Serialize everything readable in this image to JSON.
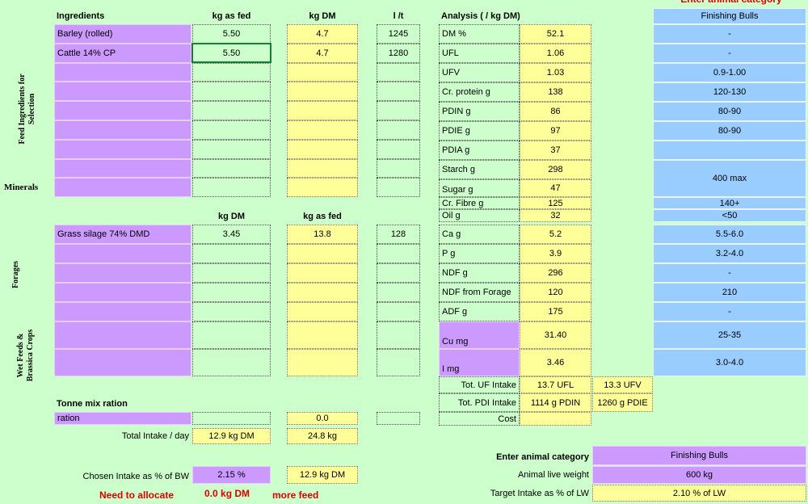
{
  "top_note": "Enter animal category",
  "side_labels": {
    "feed": "Feed Ingredients for Selection",
    "minerals": "Minerals",
    "forages": "Forages",
    "wet": "Wet Feeds & Brassica Crops"
  },
  "ingredients": {
    "headers": [
      "Ingredients",
      "kg as fed",
      "kg DM",
      "l /t"
    ],
    "rows": [
      [
        "Barley (rolled)",
        "5.50",
        "4.7",
        "1245"
      ],
      [
        "Cattle 14% CP",
        "5.50",
        "4.7",
        "1280"
      ]
    ]
  },
  "forages": {
    "headers": [
      "kg DM",
      "kg as fed"
    ],
    "rows": [
      [
        "Grass silage 74% DMD",
        "3.45",
        "13.8",
        "128"
      ]
    ]
  },
  "analysis": {
    "title": "Analysis ( / kg DM)",
    "rows": [
      [
        "DM %",
        "52.1"
      ],
      [
        "UFL",
        "1.06"
      ],
      [
        "UFV",
        "1.03"
      ],
      [
        "Cr. protein g",
        "138"
      ],
      [
        "PDIN g",
        "86"
      ],
      [
        "PDIE g",
        "97"
      ],
      [
        "PDIA g",
        "37"
      ],
      [
        "Starch g",
        "298"
      ],
      [
        "Sugar g",
        "47"
      ],
      [
        "Cr. Fibre g",
        "125"
      ],
      [
        "Oil g",
        "32"
      ],
      [
        "Ca g",
        "5.2"
      ],
      [
        "P g",
        "3.9"
      ],
      [
        "NDF g",
        "296"
      ],
      [
        "NDF from Forage",
        "120"
      ],
      [
        "ADF g",
        "175"
      ],
      [
        "Cu mg",
        "31.40"
      ],
      [
        "I mg",
        "3.46"
      ]
    ]
  },
  "requirements": {
    "header": "Finishing Bulls",
    "values": [
      "-",
      "-",
      "0.9-1.00",
      "120-130",
      "80-90",
      "80-90",
      "400 max",
      "140+",
      "<50",
      "5.5-6.0",
      "3.2-4.0",
      "-",
      "210",
      "-",
      "25-35",
      "3.0-4.0"
    ]
  },
  "totals": [
    {
      "label": "Tot. UF Intake",
      "values": [
        "13.7 UFL",
        "13.3 UFV"
      ]
    },
    {
      "label": "Tot. PDI Intake",
      "values": [
        "1114 g PDIN",
        "1260 g PDIE"
      ]
    },
    {
      "label": "Cost"
    }
  ],
  "tonne_mix": {
    "title": "Tonne mix ration",
    "ration_label": "ration",
    "ration_dm": "0.0",
    "total_label": "Total Intake / day",
    "total_dm": "12.9 kg DM",
    "total_fed": "24.8 kg",
    "chosen_label": "Chosen Intake as % of BW",
    "chosen_pct": "2.15 %",
    "chosen_dm": "12.9 kg DM"
  },
  "allocation": {
    "label": "Need to allocate",
    "value": "0.0 kg DM",
    "suffix": "more feed"
  },
  "animal": {
    "title": "Enter animal category",
    "category": "Finishing Bulls",
    "weight_label": "Animal live weight",
    "weight": "600 kg",
    "target_label": "Target Intake as % of LW",
    "target": "2.10 % of LW"
  }
}
